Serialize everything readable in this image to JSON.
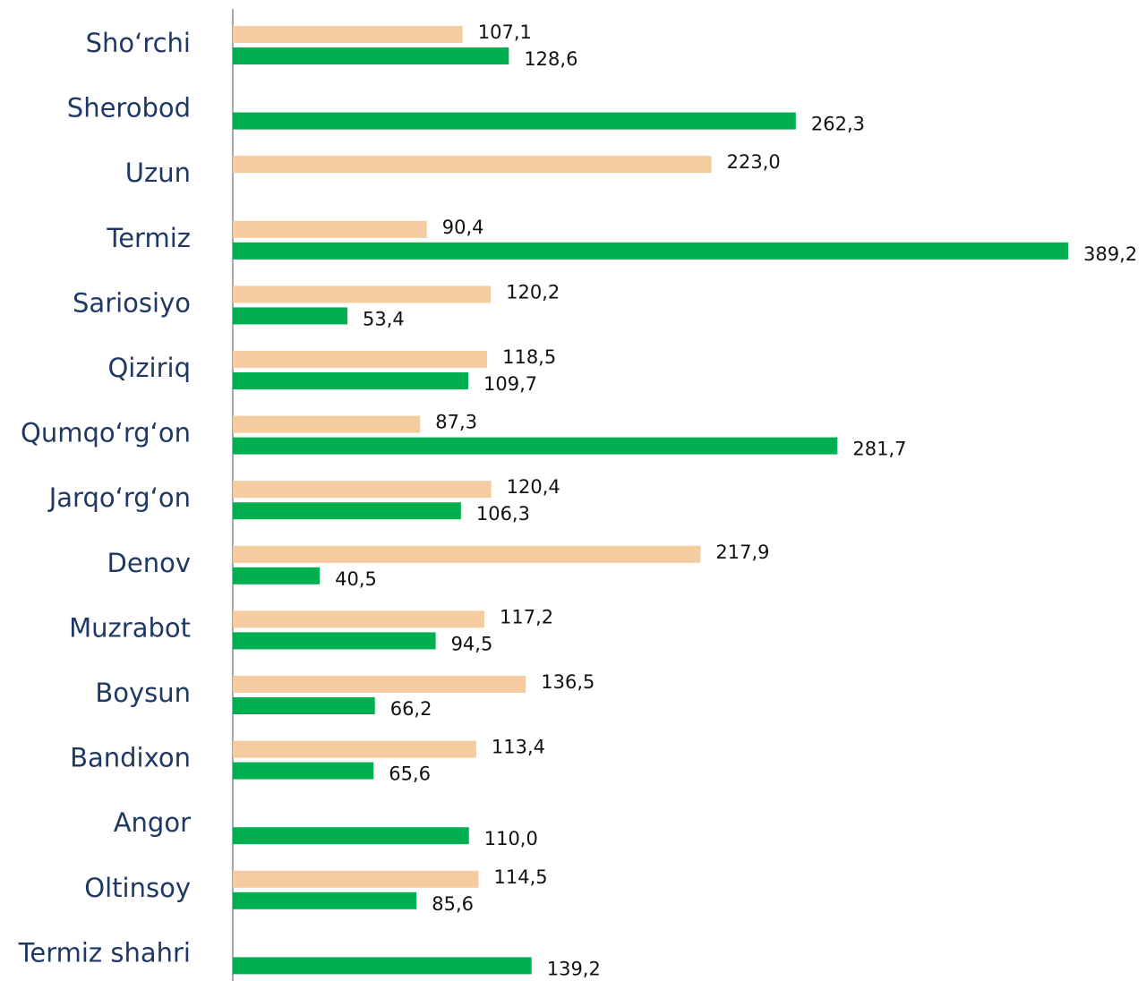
{
  "chart_data": {
    "type": "hbar",
    "categories": [
      "Sho‘rchi",
      "Sherobod",
      "Uzun",
      "Termiz",
      "Sariosiyo",
      "Qiziriq",
      "Qumqo‘rg‘on",
      "Jarqo‘rg‘on",
      "Denov",
      "Muzrabot",
      "Boysun",
      "Bandixon",
      "Angor",
      "Oltinsoy",
      "Termiz shahri"
    ],
    "series": [
      {
        "color": "#f5cba0",
        "values": [
          107.1,
          null,
          223.0,
          90.4,
          120.2,
          118.5,
          87.3,
          120.4,
          217.9,
          117.2,
          136.5,
          113.4,
          null,
          114.5,
          null
        ],
        "value_labels": [
          "107,1",
          null,
          "223,0",
          "90,4",
          "120,2",
          "118,5",
          "87,3",
          "120,4",
          "217,9",
          "117,2",
          "136,5",
          "113,4",
          null,
          "114,5",
          null
        ]
      },
      {
        "color": "#00b050",
        "values": [
          128.6,
          262.3,
          null,
          389.2,
          53.4,
          109.7,
          281.7,
          106.3,
          40.5,
          94.5,
          66.2,
          65.6,
          110.0,
          85.6,
          139.2
        ],
        "value_labels": [
          "128,6",
          "262,3",
          null,
          "389,2",
          "53,4",
          "109,7",
          "281,7",
          "106,3",
          "40,5",
          "94,5",
          "66,2",
          "65,6",
          "110,0",
          "85,6",
          "139,2"
        ]
      }
    ],
    "xlim": [
      0,
      400
    ]
  }
}
